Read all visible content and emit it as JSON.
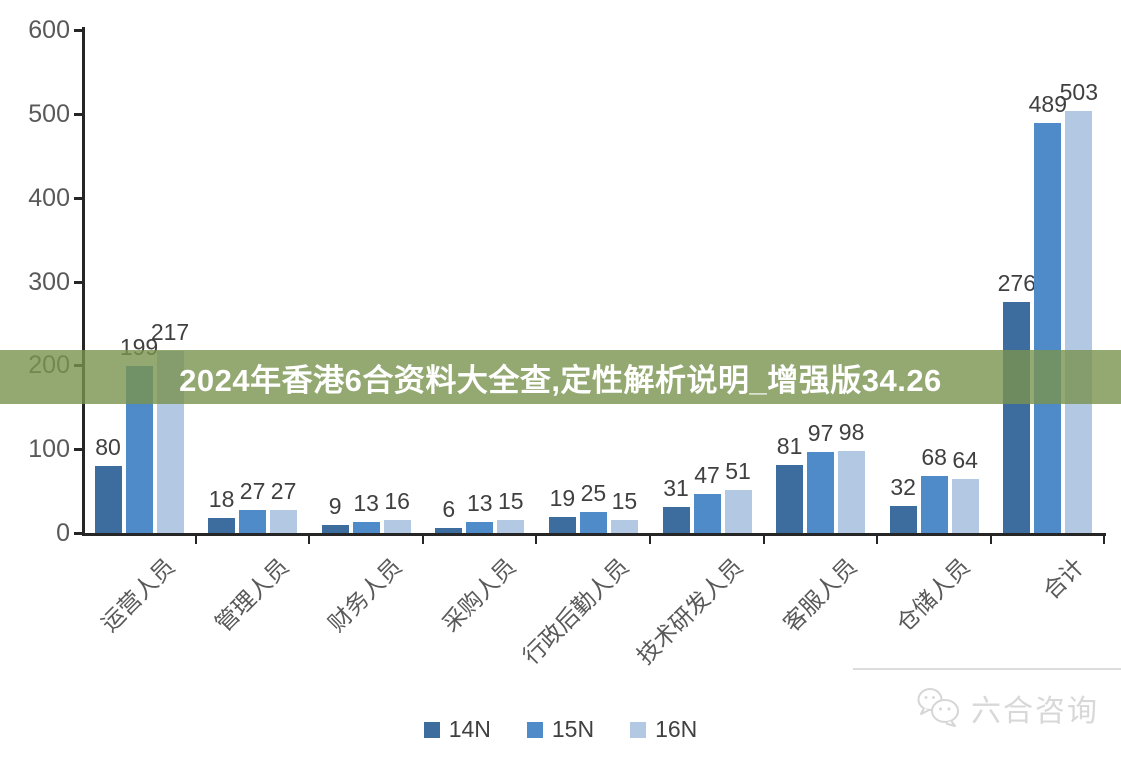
{
  "banner": {
    "text": "2024年香港6合资料大全查,定性解析说明_增强版34.26",
    "bg_color": "#79924E",
    "bg_opacity": 0.8,
    "text_color": "#FFFFFF"
  },
  "chart_data": {
    "type": "bar",
    "title": "",
    "xlabel": "",
    "ylabel": "",
    "categories": [
      "运营人员",
      "管理人员",
      "财务人员",
      "采购人员",
      "行政后勤人员",
      "技术研发人员",
      "客服人员",
      "仓储人员",
      "合计"
    ],
    "series": [
      {
        "name": "14N",
        "color": "#3C6D9E",
        "values": [
          80,
          18,
          9,
          6,
          19,
          31,
          81,
          32,
          276
        ]
      },
      {
        "name": "15N",
        "color": "#4F8BC9",
        "values": [
          199,
          27,
          13,
          13,
          25,
          47,
          97,
          68,
          489
        ]
      },
      {
        "name": "16N",
        "color": "#B3C8E3",
        "values": [
          217,
          27,
          16,
          15,
          15,
          51,
          98,
          64,
          503
        ]
      }
    ],
    "ylim": [
      0,
      600
    ],
    "yticks": [
      0,
      100,
      200,
      300,
      400,
      500,
      600
    ],
    "grid": false,
    "legend_position": "bottom",
    "value_labels": true,
    "style": {
      "axis_color": "#262626",
      "tick_label_color": "#595959",
      "value_label_color": "#404040"
    }
  },
  "watermark": {
    "text": "六合咨询",
    "icon": "wechat-icon",
    "color": "#D8D8D8"
  }
}
